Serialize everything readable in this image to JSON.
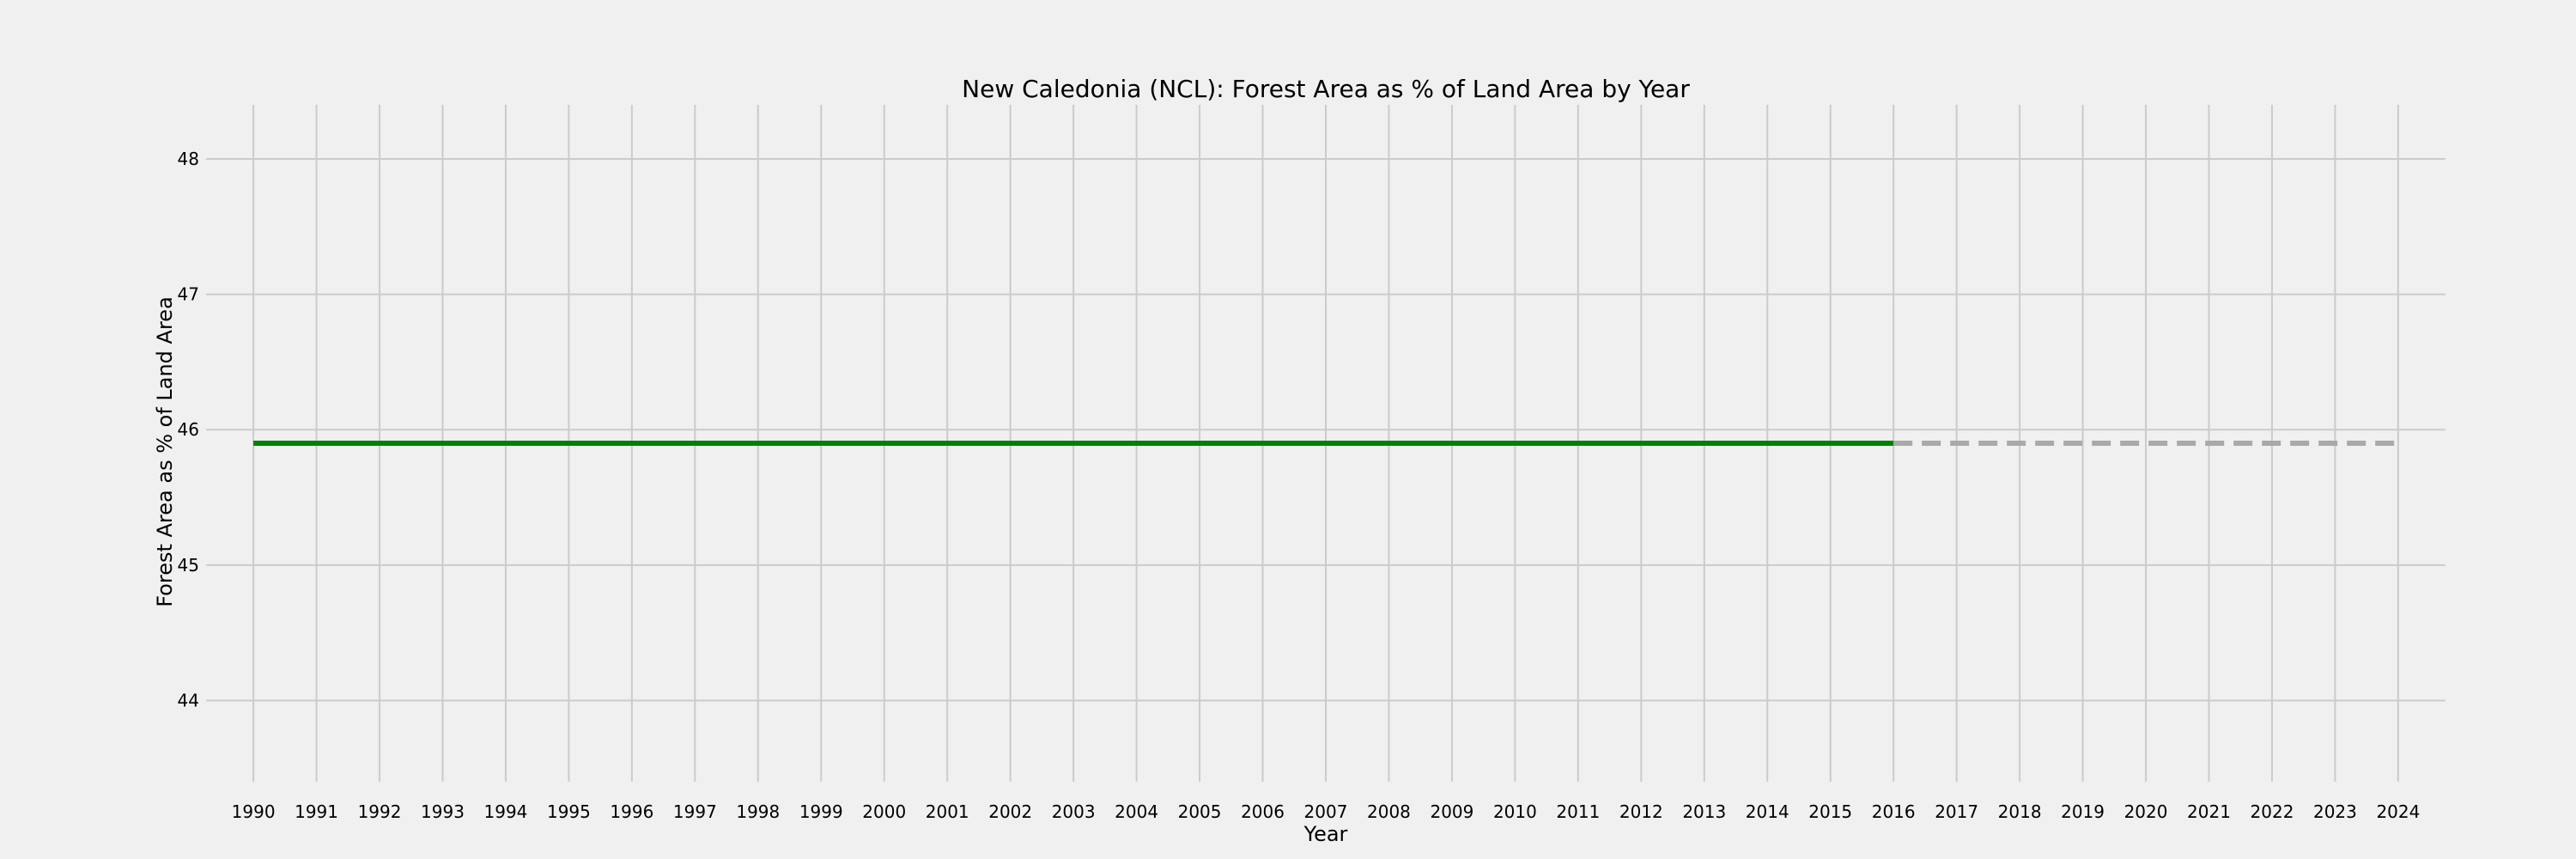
{
  "chart_data": {
    "type": "line",
    "title": "New Caledonia (NCL): Forest Area as % of Land Area by Year",
    "xlabel": "Year",
    "ylabel": "Forest Area as % of Land Area",
    "x": [
      1990,
      1991,
      1992,
      1993,
      1994,
      1995,
      1996,
      1997,
      1998,
      1999,
      2000,
      2001,
      2002,
      2003,
      2004,
      2005,
      2006,
      2007,
      2008,
      2009,
      2010,
      2011,
      2012,
      2013,
      2014,
      2015,
      2016
    ],
    "xticks": [
      "1990",
      "1991",
      "1992",
      "1993",
      "1994",
      "1995",
      "1996",
      "1997",
      "1998",
      "1999",
      "2000",
      "2001",
      "2002",
      "2003",
      "2004",
      "2005",
      "2006",
      "2007",
      "2008",
      "2009",
      "2010",
      "2011",
      "2012",
      "2013",
      "2014",
      "2015",
      "2016",
      "2017",
      "2018",
      "2019",
      "2020",
      "2021",
      "2022",
      "2023",
      "2024"
    ],
    "yticks": [
      "44",
      "45",
      "46",
      "47",
      "48"
    ],
    "xlim": [
      1989.25,
      2024.75
    ],
    "ylim": [
      43.4,
      48.4
    ],
    "grid": true,
    "series": [
      {
        "values": [
          45.9,
          45.9,
          45.9,
          45.9,
          45.9,
          45.9,
          45.9,
          45.9,
          45.9,
          45.9,
          45.9,
          45.9,
          45.9,
          45.9,
          45.9,
          45.9,
          45.9,
          45.9,
          45.9,
          45.9,
          45.9,
          45.9,
          45.9,
          45.9,
          45.9,
          45.9,
          45.9
        ],
        "color": "#008000",
        "style": "solid"
      }
    ],
    "projection": {
      "x": [
        2016,
        2024
      ],
      "values": [
        45.9,
        45.9
      ],
      "color": "#a9a9a9",
      "style": "dashed"
    }
  }
}
